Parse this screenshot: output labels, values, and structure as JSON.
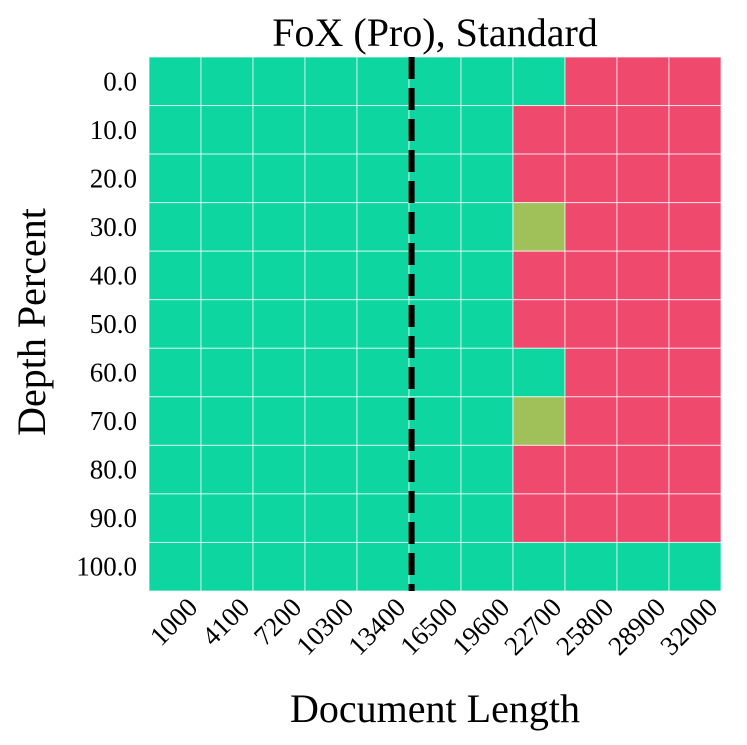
{
  "chart_data": {
    "type": "heatmap",
    "title": "FoX (Pro), Standard",
    "xlabel": "Document Length",
    "ylabel": "Depth Percent",
    "x": [
      "1000",
      "4100",
      "7200",
      "10300",
      "13400",
      "16500",
      "19600",
      "22700",
      "25800",
      "28900",
      "32000"
    ],
    "y": [
      "0.0",
      "10.0",
      "20.0",
      "30.0",
      "40.0",
      "50.0",
      "60.0",
      "70.0",
      "80.0",
      "90.0",
      "100.0"
    ],
    "values": [
      [
        1,
        1,
        1,
        1,
        1,
        1,
        1,
        1,
        0,
        0,
        0
      ],
      [
        1,
        1,
        1,
        1,
        1,
        1,
        1,
        0,
        0,
        0,
        0
      ],
      [
        1,
        1,
        1,
        1,
        1,
        1,
        1,
        0,
        0,
        0,
        0
      ],
      [
        1,
        1,
        1,
        1,
        1,
        1,
        1,
        0.5,
        0,
        0,
        0
      ],
      [
        1,
        1,
        1,
        1,
        1,
        1,
        1,
        0,
        0,
        0,
        0
      ],
      [
        1,
        1,
        1,
        1,
        1,
        1,
        1,
        0,
        0,
        0,
        0
      ],
      [
        1,
        1,
        1,
        1,
        1,
        1,
        1,
        1,
        0,
        0,
        0
      ],
      [
        1,
        1,
        1,
        1,
        1,
        1,
        1,
        0.5,
        0,
        0,
        0
      ],
      [
        1,
        1,
        1,
        1,
        1,
        1,
        1,
        0,
        0,
        0,
        0
      ],
      [
        1,
        1,
        1,
        1,
        1,
        1,
        1,
        0,
        0,
        0,
        0
      ],
      [
        1,
        1,
        1,
        1,
        1,
        1,
        1,
        1,
        1,
        1,
        1
      ]
    ],
    "colors": {
      "high": "#0dd6a0",
      "mid": "#a0c15a",
      "low": "#f0496e"
    },
    "reference_line": {
      "x": 16500,
      "style": "dashed",
      "color": "#000000"
    },
    "grid": true
  }
}
